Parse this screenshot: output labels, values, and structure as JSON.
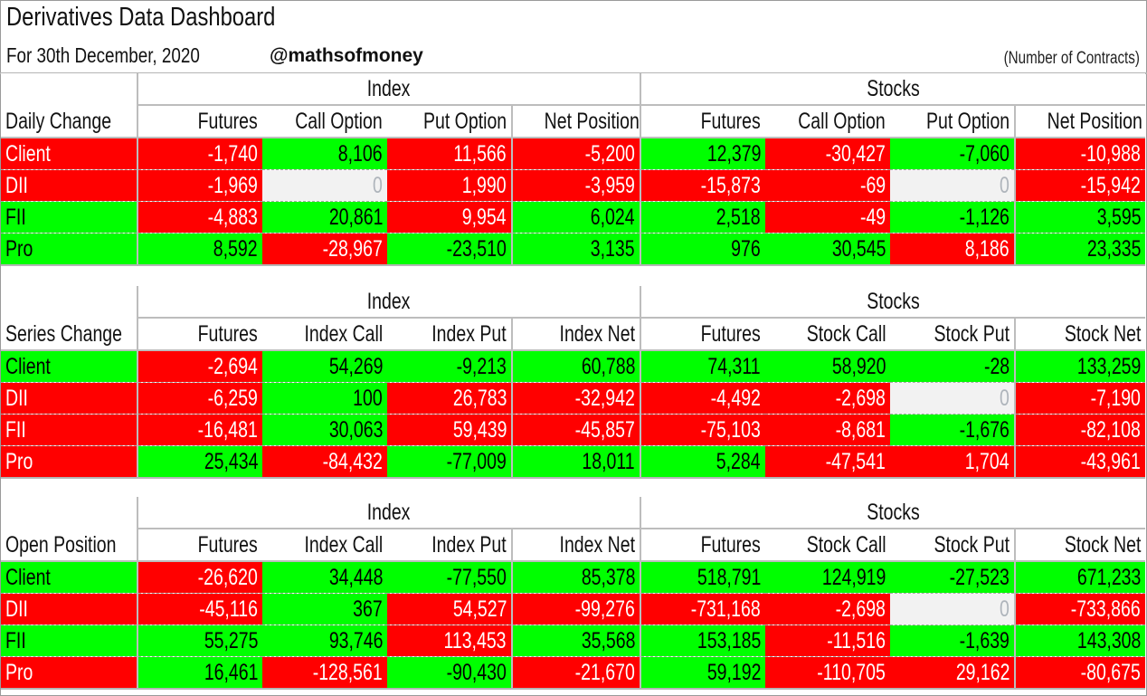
{
  "header": {
    "title": "Derivatives Data Dashboard",
    "date_line": "For 30th December, 2020",
    "handle": "@mathsofmoney",
    "units": "(Number of Contracts)"
  },
  "colors": {
    "negative_bg": "#ff0000",
    "positive_bg": "#00ff00",
    "zero_bg": "#f2f2f2",
    "grid_line": "#bdbdbd"
  },
  "sections": [
    {
      "name": "Daily Change",
      "groups": [
        "Index",
        "Stocks"
      ],
      "columns": [
        "Futures",
        "Call Option",
        "Put Option",
        "Net Position",
        "Futures",
        "Call Option",
        "Put Option",
        "Net Position"
      ],
      "rows": [
        {
          "label": "Client",
          "label_color": "red",
          "values": [
            "-1,740",
            "8,106",
            "11,566",
            "-5,200",
            "12,379",
            "-30,427",
            "-7,060",
            "-10,988"
          ],
          "colors": [
            "red",
            "grn",
            "red",
            "red",
            "grn",
            "red",
            "grn",
            "red"
          ]
        },
        {
          "label": "DII",
          "label_color": "red",
          "values": [
            "-1,969",
            "0",
            "1,990",
            "-3,959",
            "-15,873",
            "-69",
            "0",
            "-15,942"
          ],
          "colors": [
            "red",
            "zero",
            "red",
            "red",
            "red",
            "red",
            "zero",
            "red"
          ]
        },
        {
          "label": "FII",
          "label_color": "grn",
          "values": [
            "-4,883",
            "20,861",
            "9,954",
            "6,024",
            "2,518",
            "-49",
            "-1,126",
            "3,595"
          ],
          "colors": [
            "red",
            "grn",
            "red",
            "grn",
            "grn",
            "red",
            "grn",
            "grn"
          ]
        },
        {
          "label": "Pro",
          "label_color": "grn",
          "values": [
            "8,592",
            "-28,967",
            "-23,510",
            "3,135",
            "976",
            "30,545",
            "8,186",
            "23,335"
          ],
          "colors": [
            "grn",
            "red",
            "grn",
            "grn",
            "grn",
            "grn",
            "red",
            "grn"
          ]
        }
      ]
    },
    {
      "name": "Series Change",
      "groups": [
        "Index",
        "Stocks"
      ],
      "columns": [
        "Futures",
        "Index Call",
        "Index Put",
        "Index Net",
        "Futures",
        "Stock Call",
        "Stock Put",
        "Stock Net"
      ],
      "rows": [
        {
          "label": "Client",
          "label_color": "grn",
          "values": [
            "-2,694",
            "54,269",
            "-9,213",
            "60,788",
            "74,311",
            "58,920",
            "-28",
            "133,259"
          ],
          "colors": [
            "red",
            "grn",
            "grn",
            "grn",
            "grn",
            "grn",
            "grn",
            "grn"
          ]
        },
        {
          "label": "DII",
          "label_color": "red",
          "values": [
            "-6,259",
            "100",
            "26,783",
            "-32,942",
            "-4,492",
            "-2,698",
            "0",
            "-7,190"
          ],
          "colors": [
            "red",
            "grn",
            "red",
            "red",
            "red",
            "red",
            "zero",
            "red"
          ]
        },
        {
          "label": "FII",
          "label_color": "red",
          "values": [
            "-16,481",
            "30,063",
            "59,439",
            "-45,857",
            "-75,103",
            "-8,681",
            "-1,676",
            "-82,108"
          ],
          "colors": [
            "red",
            "grn",
            "red",
            "red",
            "red",
            "red",
            "grn",
            "red"
          ]
        },
        {
          "label": "Pro",
          "label_color": "red",
          "values": [
            "25,434",
            "-84,432",
            "-77,009",
            "18,011",
            "5,284",
            "-47,541",
            "1,704",
            "-43,961"
          ],
          "colors": [
            "grn",
            "red",
            "grn",
            "grn",
            "grn",
            "red",
            "red",
            "red"
          ]
        }
      ]
    },
    {
      "name": "Open Position",
      "groups": [
        "Index",
        "Stocks"
      ],
      "columns": [
        "Futures",
        "Index Call",
        "Index Put",
        "Index Net",
        "Futures",
        "Stock Call",
        "Stock Put",
        "Stock Net"
      ],
      "rows": [
        {
          "label": "Client",
          "label_color": "grn",
          "values": [
            "-26,620",
            "34,448",
            "-77,550",
            "85,378",
            "518,791",
            "124,919",
            "-27,523",
            "671,233"
          ],
          "colors": [
            "red",
            "grn",
            "grn",
            "grn",
            "grn",
            "grn",
            "grn",
            "grn"
          ]
        },
        {
          "label": "DII",
          "label_color": "red",
          "values": [
            "-45,116",
            "367",
            "54,527",
            "-99,276",
            "-731,168",
            "-2,698",
            "0",
            "-733,866"
          ],
          "colors": [
            "red",
            "grn",
            "red",
            "red",
            "red",
            "red",
            "zero",
            "red"
          ]
        },
        {
          "label": "FII",
          "label_color": "grn",
          "values": [
            "55,275",
            "93,746",
            "113,453",
            "35,568",
            "153,185",
            "-11,516",
            "-1,639",
            "143,308"
          ],
          "colors": [
            "grn",
            "grn",
            "red",
            "grn",
            "grn",
            "red",
            "grn",
            "grn"
          ]
        },
        {
          "label": "Pro",
          "label_color": "red",
          "values": [
            "16,461",
            "-128,561",
            "-90,430",
            "-21,670",
            "59,192",
            "-110,705",
            "29,162",
            "-80,675"
          ],
          "colors": [
            "grn",
            "red",
            "grn",
            "red",
            "grn",
            "red",
            "red",
            "red"
          ]
        }
      ]
    }
  ]
}
